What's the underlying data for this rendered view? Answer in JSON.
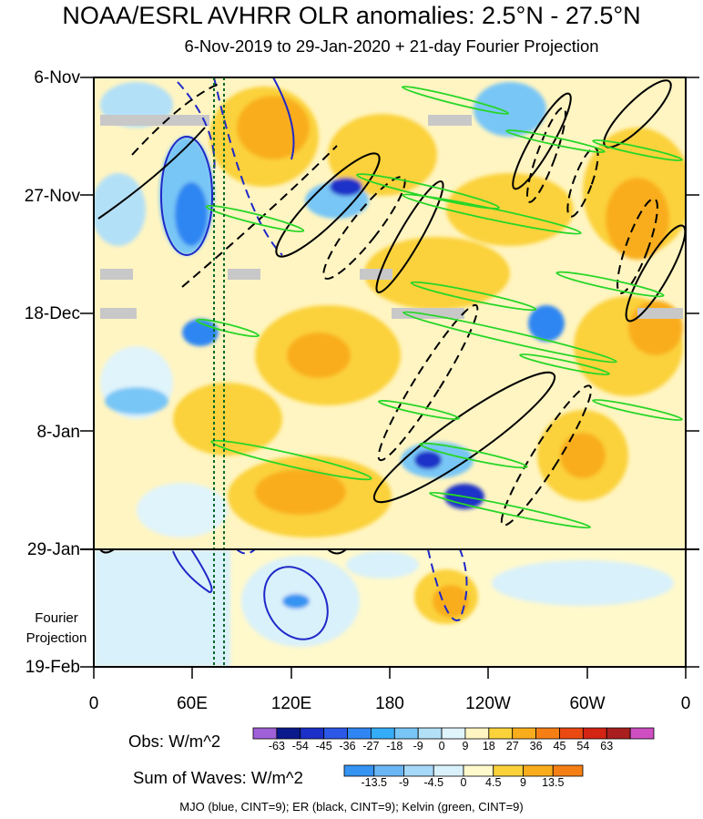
{
  "chart_data": {
    "type": "heatmap",
    "title": "NOAA/ESRL AVHRR OLR anomalies: 2.5°N - 27.5°N",
    "subtitle": "6-Nov-2019 to 29-Jan-2020 + 21-day Fourier Projection",
    "y_tick_labels": [
      "6-Nov",
      "27-Nov",
      "18-Dec",
      "8-Jan",
      "29-Jan",
      "19-Feb"
    ],
    "x_tick_labels": [
      "0",
      "60E",
      "120E",
      "180",
      "120W",
      "60W",
      "0"
    ],
    "x_range": [
      0,
      360
    ],
    "projection_label_line1": "Fourier",
    "projection_label_line2": "Projection",
    "obs_legend": {
      "label": "Obs: W/m^2",
      "levels": [
        "-63",
        "-54",
        "-45",
        "-36",
        "-27",
        "-18",
        "-9",
        "0",
        "9",
        "18",
        "27",
        "36",
        "45",
        "54",
        "63"
      ],
      "colors": [
        "#9f60d8",
        "#0a1a8c",
        "#1a30c8",
        "#2b58e6",
        "#2f86f2",
        "#35acf7",
        "#78c6f6",
        "#b2e0f7",
        "#e0f4fb",
        "#fff5c2",
        "#fbd23a",
        "#f9ad1c",
        "#f57f14",
        "#ea4a12",
        "#d32414",
        "#a91e1e",
        "#cf4fc2"
      ]
    },
    "waves_legend": {
      "label": "Sum of Waves: W/m^2",
      "levels": [
        "-13.5",
        "-9",
        "-4.5",
        "0",
        "4.5",
        "9",
        "13.5"
      ],
      "colors": [
        "#3593f2",
        "#6ab6f5",
        "#a6d8f7",
        "#d9f1fa",
        "#fff9cc",
        "#fbd23a",
        "#f9ad1c",
        "#f57f14"
      ]
    },
    "contour_note": "MJO (blue, CINT=9); ER (black, CINT=9); Kelvin (green, CINT=9)"
  }
}
